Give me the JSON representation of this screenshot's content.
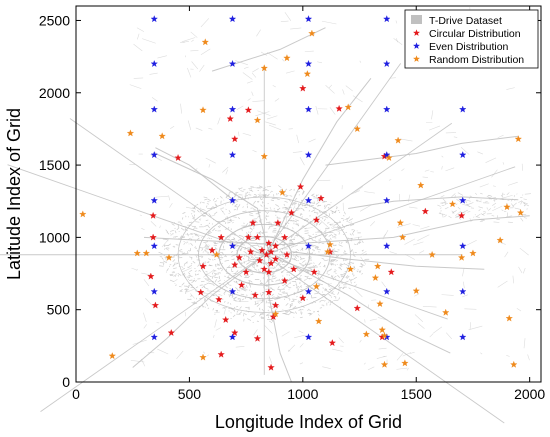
{
  "chart_data": {
    "type": "scatter",
    "xlabel": "Longitude Index of Grid",
    "ylabel": "Latitude Index of Grid",
    "xlim": [
      0,
      2050
    ],
    "ylim": [
      0,
      2600
    ],
    "xticks": [
      0,
      500,
      1000,
      1500,
      2000
    ],
    "yticks": [
      0,
      500,
      1000,
      1500,
      2000,
      2500
    ],
    "grid": false,
    "legend_position": "top-right",
    "legend": [
      {
        "label": "T-Drive Dataset",
        "marker": "square",
        "color": "#c0c0c0"
      },
      {
        "label": "Circular Distribution",
        "marker": "star",
        "color": "#e41a1c"
      },
      {
        "label": "Even Distribution",
        "marker": "star",
        "color": "#1f1fe0"
      },
      {
        "label": "Random Distribution",
        "marker": "star",
        "color": "#ef8a1c"
      }
    ],
    "series": [
      {
        "name": "Circular Distribution",
        "color": "#e41a1c",
        "points": [
          [
            340,
            1150
          ],
          [
            340,
            1000
          ],
          [
            330,
            730
          ],
          [
            350,
            530
          ],
          [
            420,
            340
          ],
          [
            450,
            1550
          ],
          [
            550,
            620
          ],
          [
            560,
            800
          ],
          [
            660,
            430
          ],
          [
            600,
            910
          ],
          [
            630,
            570
          ],
          [
            640,
            190
          ],
          [
            680,
            1820
          ],
          [
            700,
            1680
          ],
          [
            700,
            810
          ],
          [
            700,
            340
          ],
          [
            720,
            860
          ],
          [
            730,
            670
          ],
          [
            750,
            760
          ],
          [
            760,
            1000
          ],
          [
            770,
            900
          ],
          [
            780,
            1100
          ],
          [
            790,
            600
          ],
          [
            800,
            300
          ],
          [
            800,
            1000
          ],
          [
            810,
            840
          ],
          [
            820,
            910
          ],
          [
            830,
            780
          ],
          [
            840,
            880
          ],
          [
            850,
            960
          ],
          [
            850,
            760
          ],
          [
            850,
            620
          ],
          [
            860,
            900
          ],
          [
            860,
            820
          ],
          [
            860,
            100
          ],
          [
            880,
            940
          ],
          [
            880,
            850
          ],
          [
            890,
            1100
          ],
          [
            920,
            1000
          ],
          [
            920,
            700
          ],
          [
            930,
            880
          ],
          [
            950,
            1170
          ],
          [
            960,
            780
          ],
          [
            1000,
            580
          ],
          [
            1000,
            2030
          ],
          [
            1060,
            1120
          ],
          [
            1080,
            1270
          ],
          [
            1120,
            900
          ],
          [
            1130,
            270
          ],
          [
            1160,
            1890
          ],
          [
            1240,
            510
          ],
          [
            1360,
            1560
          ],
          [
            1350,
            310
          ],
          [
            1390,
            760
          ],
          [
            1540,
            1180
          ],
          [
            1700,
            1150
          ],
          [
            760,
            1880
          ],
          [
            870,
            450
          ],
          [
            640,
            1000
          ],
          [
            1050,
            760
          ],
          [
            990,
            1350
          ],
          [
            880,
            530
          ]
        ]
      },
      {
        "name": "Even Distribution",
        "color": "#1f1fe0",
        "points": [
          [
            345,
            2510
          ],
          [
            345,
            2200
          ],
          [
            345,
            1885
          ],
          [
            345,
            1570
          ],
          [
            345,
            1255
          ],
          [
            345,
            940
          ],
          [
            345,
            625
          ],
          [
            345,
            310
          ],
          [
            690,
            2510
          ],
          [
            690,
            2200
          ],
          [
            690,
            1885
          ],
          [
            690,
            1570
          ],
          [
            690,
            1255
          ],
          [
            690,
            940
          ],
          [
            690,
            625
          ],
          [
            690,
            310
          ],
          [
            1025,
            2510
          ],
          [
            1025,
            2200
          ],
          [
            1025,
            1885
          ],
          [
            1025,
            1570
          ],
          [
            1025,
            1255
          ],
          [
            1025,
            940
          ],
          [
            1025,
            625
          ],
          [
            1025,
            310
          ],
          [
            1370,
            2510
          ],
          [
            1370,
            2200
          ],
          [
            1370,
            1885
          ],
          [
            1370,
            1570
          ],
          [
            1370,
            1255
          ],
          [
            1370,
            940
          ],
          [
            1370,
            625
          ],
          [
            1370,
            310
          ],
          [
            1705,
            2510
          ],
          [
            1705,
            2200
          ],
          [
            1705,
            1885
          ],
          [
            1705,
            1570
          ],
          [
            1705,
            1255
          ],
          [
            1705,
            940
          ],
          [
            1705,
            625
          ],
          [
            1705,
            310
          ]
        ]
      },
      {
        "name": "Random Distribution",
        "color": "#ef8a1c",
        "points": [
          [
            30,
            1160
          ],
          [
            160,
            180
          ],
          [
            240,
            1720
          ],
          [
            270,
            890
          ],
          [
            310,
            890
          ],
          [
            380,
            1700
          ],
          [
            410,
            860
          ],
          [
            570,
            2350
          ],
          [
            560,
            1880
          ],
          [
            560,
            170
          ],
          [
            620,
            880
          ],
          [
            800,
            1810
          ],
          [
            830,
            2170
          ],
          [
            830,
            1560
          ],
          [
            880,
            470
          ],
          [
            910,
            1310
          ],
          [
            930,
            2240
          ],
          [
            1020,
            2130
          ],
          [
            1040,
            2410
          ],
          [
            1060,
            660
          ],
          [
            1070,
            420
          ],
          [
            1110,
            900
          ],
          [
            1120,
            950
          ],
          [
            1200,
            1900
          ],
          [
            1210,
            780
          ],
          [
            1240,
            1750
          ],
          [
            1280,
            330
          ],
          [
            1320,
            720
          ],
          [
            1330,
            800
          ],
          [
            1340,
            540
          ],
          [
            1350,
            360
          ],
          [
            1360,
            320
          ],
          [
            1360,
            120
          ],
          [
            1380,
            1550
          ],
          [
            1420,
            1670
          ],
          [
            1430,
            1100
          ],
          [
            1440,
            1000
          ],
          [
            1450,
            130
          ],
          [
            1500,
            630
          ],
          [
            1520,
            1360
          ],
          [
            1570,
            880
          ],
          [
            1630,
            480
          ],
          [
            1660,
            1230
          ],
          [
            1700,
            860
          ],
          [
            1750,
            890
          ],
          [
            1870,
            980
          ],
          [
            1900,
            1210
          ],
          [
            1910,
            440
          ],
          [
            1930,
            120
          ],
          [
            1950,
            1680
          ],
          [
            1960,
            1170
          ]
        ]
      }
    ],
    "dataset_background": {
      "name": "T-Drive Dataset",
      "color": "#c0c0c0",
      "description_shown_as": "dense grey road-network trajectories concentrated around center"
    }
  }
}
